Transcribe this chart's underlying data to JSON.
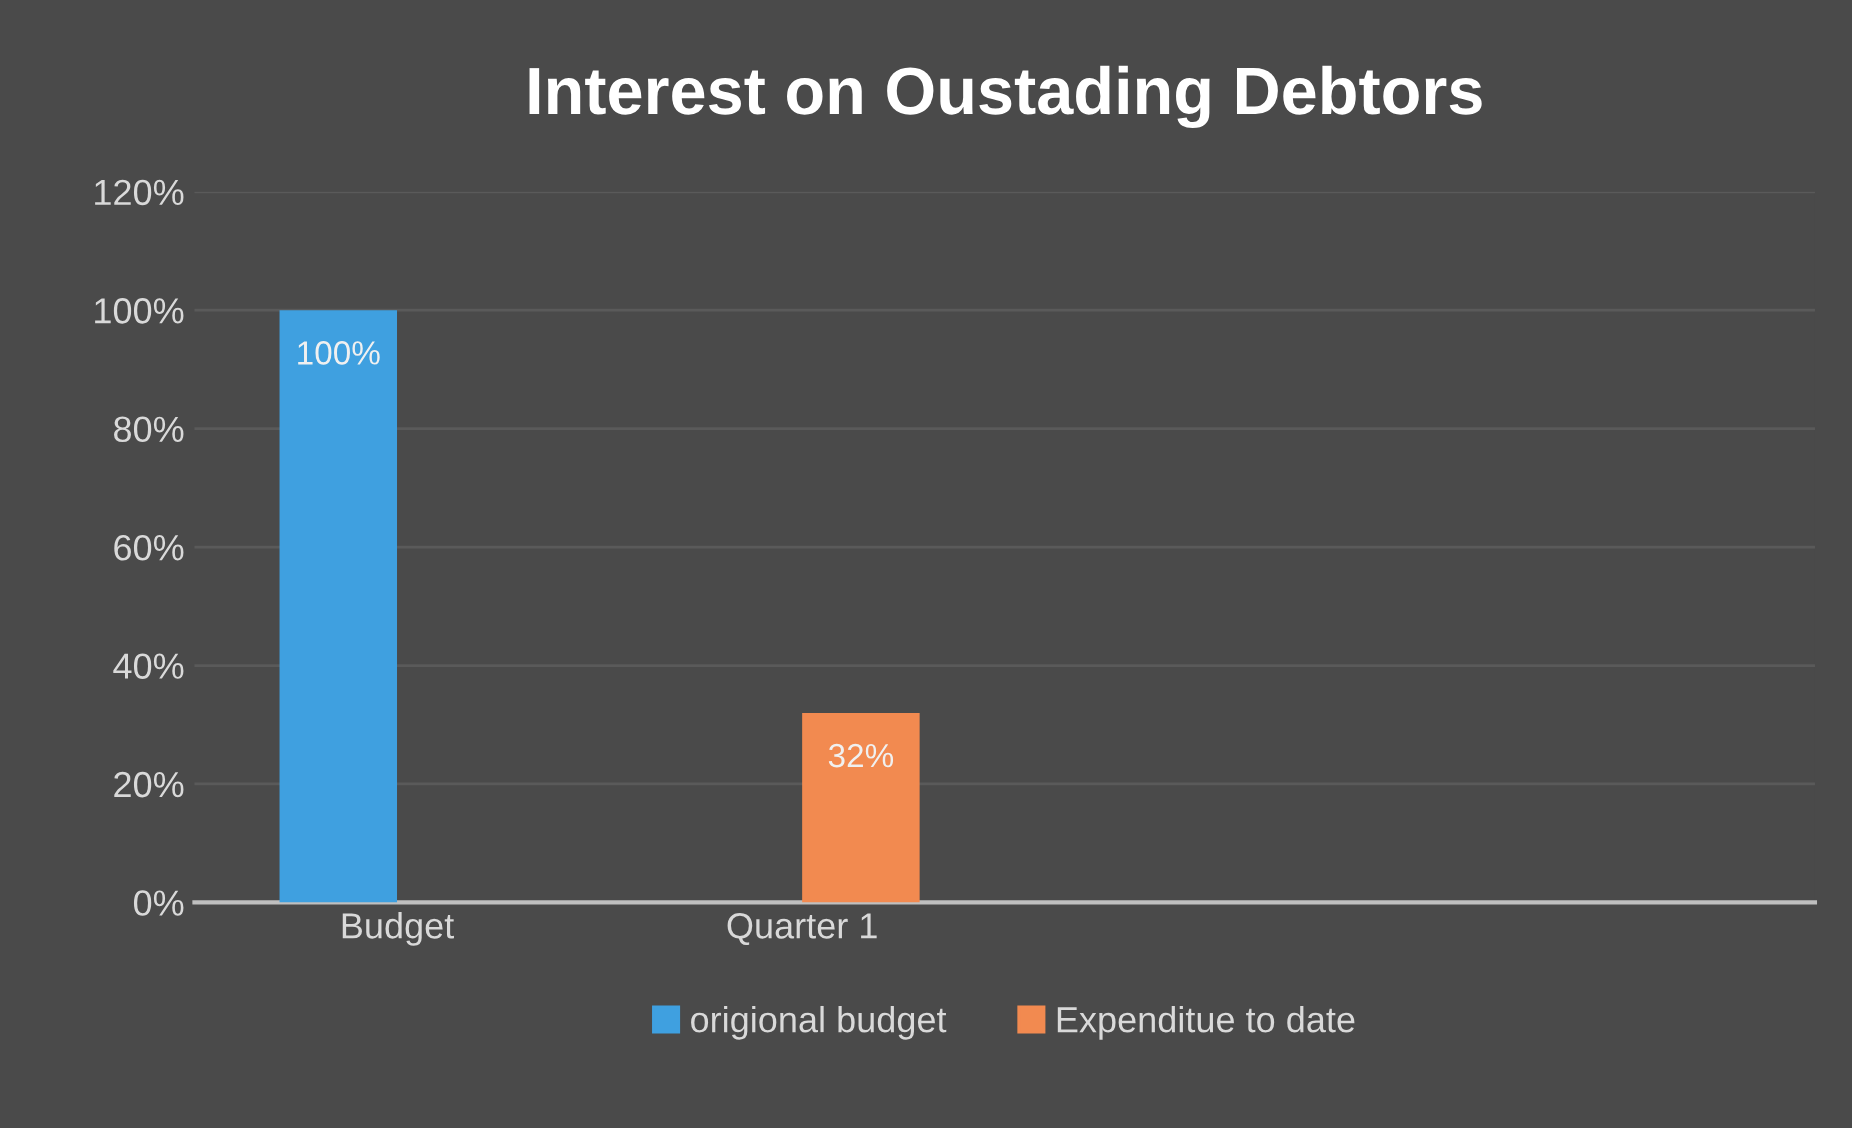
{
  "chart_data": {
    "type": "bar",
    "title": "Interest on Oustading Debtors",
    "categories": [
      "Budget",
      "Quarter 1",
      null,
      null
    ],
    "series": [
      {
        "name": "origional budget",
        "color": "#3fa0e0",
        "values": [
          100,
          null,
          null,
          null
        ],
        "value_labels": [
          "100%",
          null,
          null,
          null
        ]
      },
      {
        "name": "Expenditue to date",
        "color": "#f28a50",
        "values": [
          null,
          32,
          null,
          null
        ],
        "value_labels": [
          null,
          "32%",
          null,
          null
        ]
      }
    ],
    "ylim": [
      0,
      120
    ],
    "yticks": [
      {
        "value": 0,
        "label": "0%"
      },
      {
        "value": 20,
        "label": "20%"
      },
      {
        "value": 40,
        "label": "40%"
      },
      {
        "value": 60,
        "label": "60%"
      },
      {
        "value": 80,
        "label": "80%"
      },
      {
        "value": 100,
        "label": "100%"
      },
      {
        "value": 120,
        "label": "120%"
      }
    ],
    "grid": "y",
    "legend": "bottom"
  }
}
